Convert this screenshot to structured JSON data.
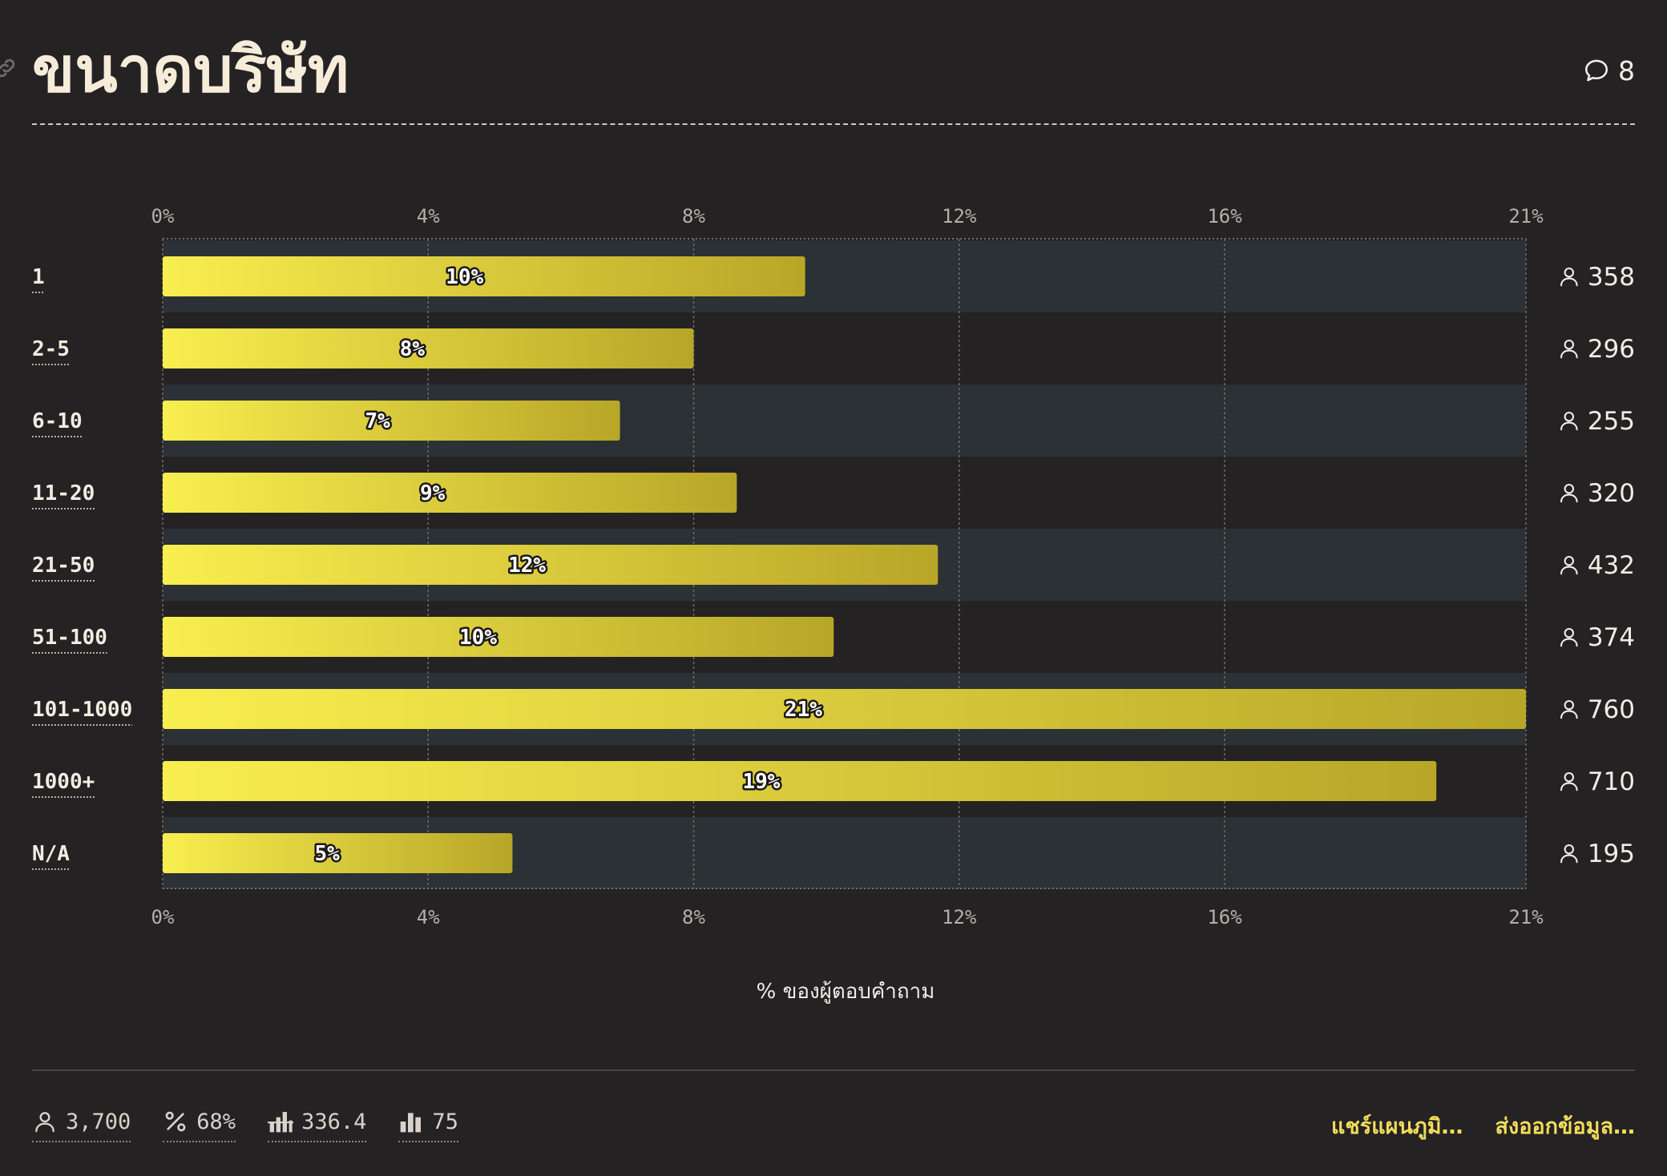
{
  "header": {
    "title": "ขนาดบริษัท",
    "comment_count": "8"
  },
  "chart_data": {
    "type": "bar",
    "orientation": "horizontal",
    "categories": [
      "1",
      "2-5",
      "6-10",
      "11-20",
      "21-50",
      "51-100",
      "101-1000",
      "1000+",
      "N/A"
    ],
    "values": [
      9.68,
      8.0,
      6.89,
      8.65,
      11.68,
      10.11,
      20.54,
      19.19,
      5.27
    ],
    "value_labels": [
      "10%",
      "8%",
      "7%",
      "9%",
      "12%",
      "10%",
      "21%",
      "19%",
      "5%"
    ],
    "respondents": [
      "358",
      "296",
      "255",
      "320",
      "432",
      "374",
      "760",
      "710",
      "195"
    ],
    "xlim": [
      0,
      20.54
    ],
    "xticks": [
      0,
      4,
      8,
      12,
      16,
      20.54
    ],
    "xtick_labels": [
      "0%",
      "4%",
      "8%",
      "12%",
      "16%",
      "21%"
    ],
    "xlabel": "% ของผู้ตอบคำถาม",
    "grid": true,
    "colors": {
      "bar_start": "#f9ee4f",
      "bar_end": "#b8a628",
      "row_band": "#2b3135",
      "background": "#252224"
    }
  },
  "footer": {
    "stats": [
      {
        "icon": "person-icon",
        "value": "3,700"
      },
      {
        "icon": "percent-icon",
        "value": "68%"
      },
      {
        "icon": "average-bars-icon",
        "value": "336.4"
      },
      {
        "icon": "median-bars-icon",
        "value": "75"
      }
    ],
    "actions": {
      "share": "แชร์แผนภูมิ…",
      "export": "ส่งออกข้อมูล…"
    }
  }
}
